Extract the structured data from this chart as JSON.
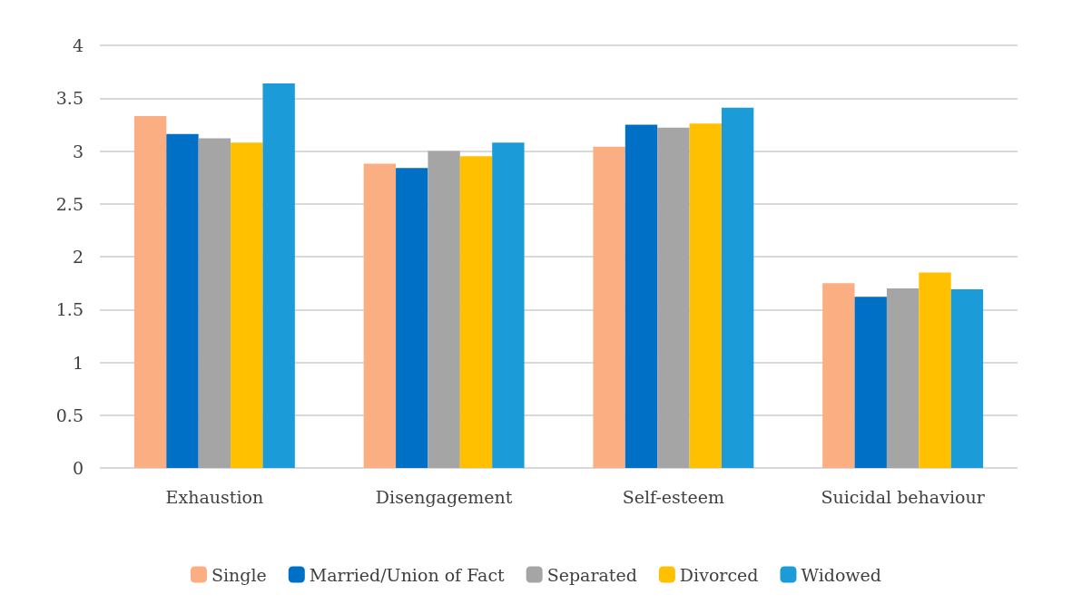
{
  "chart_data": {
    "type": "bar",
    "categories": [
      "Exhaustion",
      "Disengagement",
      "Self-esteem",
      "Suicidal behaviour"
    ],
    "series": [
      {
        "name": "Single",
        "color": "#fbae82",
        "values": [
          3.33,
          2.88,
          3.04,
          1.75
        ]
      },
      {
        "name": "Married/Union of Fact",
        "color": "#0070c6",
        "values": [
          3.16,
          2.84,
          3.25,
          1.62
        ]
      },
      {
        "name": "Separated",
        "color": "#a5a5a5",
        "values": [
          3.12,
          3.0,
          3.22,
          1.7
        ]
      },
      {
        "name": "Divorced",
        "color": "#ffc000",
        "values": [
          3.08,
          2.95,
          3.26,
          1.85
        ]
      },
      {
        "name": "Widowed",
        "color": "#1b9cd8",
        "values": [
          3.64,
          3.08,
          3.41,
          1.69
        ]
      }
    ],
    "ylim": [
      0,
      4
    ],
    "yticks": [
      0,
      0.5,
      1,
      1.5,
      2,
      2.5,
      3,
      3.5,
      4
    ],
    "grid": "y",
    "legend": "bottom"
  }
}
